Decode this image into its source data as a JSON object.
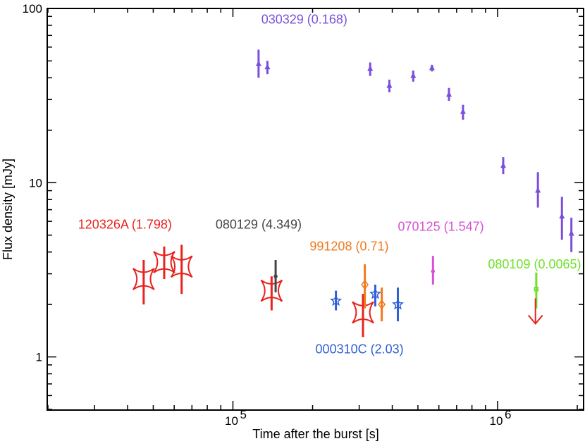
{
  "chart_data": {
    "type": "scatter",
    "title": "",
    "xlabel": "Time after the burst [s]",
    "ylabel": "Flux density [mJy]",
    "xscale": "log",
    "yscale": "log",
    "xlim": [
      20000,
      2100000
    ],
    "ylim": [
      0.5,
      100
    ],
    "x_ticks": [
      {
        "value": 100000,
        "label": "10",
        "exp": "5"
      },
      {
        "value": 1000000,
        "label": "10",
        "exp": "6"
      }
    ],
    "y_ticks": [
      {
        "value": 1,
        "label": "1"
      },
      {
        "value": 10,
        "label": "10"
      },
      {
        "value": 100,
        "label": "100"
      }
    ],
    "grid": false,
    "series": [
      {
        "name": "120326A (1.798)",
        "color": "#e8231f",
        "marker": "star4",
        "points": [
          {
            "x": 46000,
            "y": 2.8,
            "ylo": 2.0,
            "yhi": 3.6
          },
          {
            "x": 55000,
            "y": 3.5,
            "ylo": 2.8,
            "yhi": 4.3
          },
          {
            "x": 64000,
            "y": 3.3,
            "ylo": 2.3,
            "yhi": 4.4
          },
          {
            "x": 140000,
            "y": 2.4,
            "ylo": 1.85,
            "yhi": 2.9
          },
          {
            "x": 310000,
            "y": 1.8,
            "ylo": 1.3,
            "yhi": 2.3
          }
        ]
      },
      {
        "name": "080129 (4.349)",
        "color": "#444444",
        "marker": "dot",
        "points": [
          {
            "x": 145000,
            "y": 2.9,
            "ylo": 2.35,
            "yhi": 3.6
          }
        ]
      },
      {
        "name": "991208 (0.71)",
        "color": "#f07a1d",
        "marker": "diamond",
        "points": [
          {
            "x": 315000,
            "y": 2.6,
            "ylo": 1.9,
            "yhi": 3.4
          },
          {
            "x": 365000,
            "y": 2.0,
            "ylo": 1.6,
            "yhi": 2.5
          }
        ]
      },
      {
        "name": "000310C (2.03)",
        "color": "#2e5fd6",
        "marker": "star5",
        "points": [
          {
            "x": 245000,
            "y": 2.1,
            "ylo": 1.85,
            "yhi": 2.4
          },
          {
            "x": 345000,
            "y": 2.3,
            "ylo": 1.95,
            "yhi": 2.6
          },
          {
            "x": 420000,
            "y": 2.0,
            "ylo": 1.6,
            "yhi": 2.5
          }
        ]
      },
      {
        "name": "070125 (1.547)",
        "color": "#d94fd6",
        "marker": "dot",
        "points": [
          {
            "x": 570000,
            "y": 3.1,
            "ylo": 2.6,
            "yhi": 3.8
          }
        ]
      },
      {
        "name": "080109 (0.0065)",
        "color": "#6fe02a",
        "marker": "square",
        "points": [
          {
            "x": 1400000,
            "y": 2.45,
            "ylo": 1.9,
            "yhi": 3.05
          }
        ]
      },
      {
        "name": "030329 (0.168)",
        "color": "#7a4fdc",
        "marker": "triangle",
        "points": [
          {
            "x": 125000,
            "y": 48,
            "ylo": 40,
            "yhi": 58
          },
          {
            "x": 135000,
            "y": 46,
            "ylo": 42,
            "yhi": 50
          },
          {
            "x": 330000,
            "y": 45,
            "ylo": 41,
            "yhi": 49
          },
          {
            "x": 390000,
            "y": 36,
            "ylo": 33,
            "yhi": 39
          },
          {
            "x": 480000,
            "y": 41,
            "ylo": 38,
            "yhi": 44
          },
          {
            "x": 565000,
            "y": 45.5,
            "ylo": 43.5,
            "yhi": 47.5
          },
          {
            "x": 655000,
            "y": 32,
            "ylo": 29.5,
            "yhi": 35
          },
          {
            "x": 740000,
            "y": 25.5,
            "ylo": 23,
            "yhi": 28
          },
          {
            "x": 1050000,
            "y": 12.5,
            "ylo": 11.2,
            "yhi": 14
          },
          {
            "x": 1420000,
            "y": 9.0,
            "ylo": 7.2,
            "yhi": 11.5
          },
          {
            "x": 1750000,
            "y": 6.4,
            "ylo": 4.7,
            "yhi": 8.3
          },
          {
            "x": 1900000,
            "y": 5.1,
            "ylo": 4.0,
            "yhi": 6.3
          }
        ]
      }
    ],
    "upper_limits": [
      {
        "x": 1390000,
        "y": 1.55,
        "color": "#e8231f"
      }
    ],
    "annotations": [
      {
        "text": "030329 (0.168)",
        "color": "#7a4fdc",
        "x": 128000,
        "y": 82
      },
      {
        "text": "120326A (1.798)",
        "color": "#e8231f",
        "x": 26000,
        "y": 5.45
      },
      {
        "text": "080129 (4.349)",
        "color": "#444444",
        "x": 86000,
        "y": 5.45
      },
      {
        "text": "991208 (0.71)",
        "color": "#f07a1d",
        "x": 195000,
        "y": 4.08
      },
      {
        "text": "070125 (1.547)",
        "color": "#d94fd6",
        "x": 420000,
        "y": 5.3
      },
      {
        "text": "080109 (0.0065)",
        "color": "#6fe02a",
        "x": 920000,
        "y": 3.22
      },
      {
        "text": "000310C (2.03)",
        "color": "#2e5fd6",
        "x": 205000,
        "y": 1.05
      }
    ]
  }
}
